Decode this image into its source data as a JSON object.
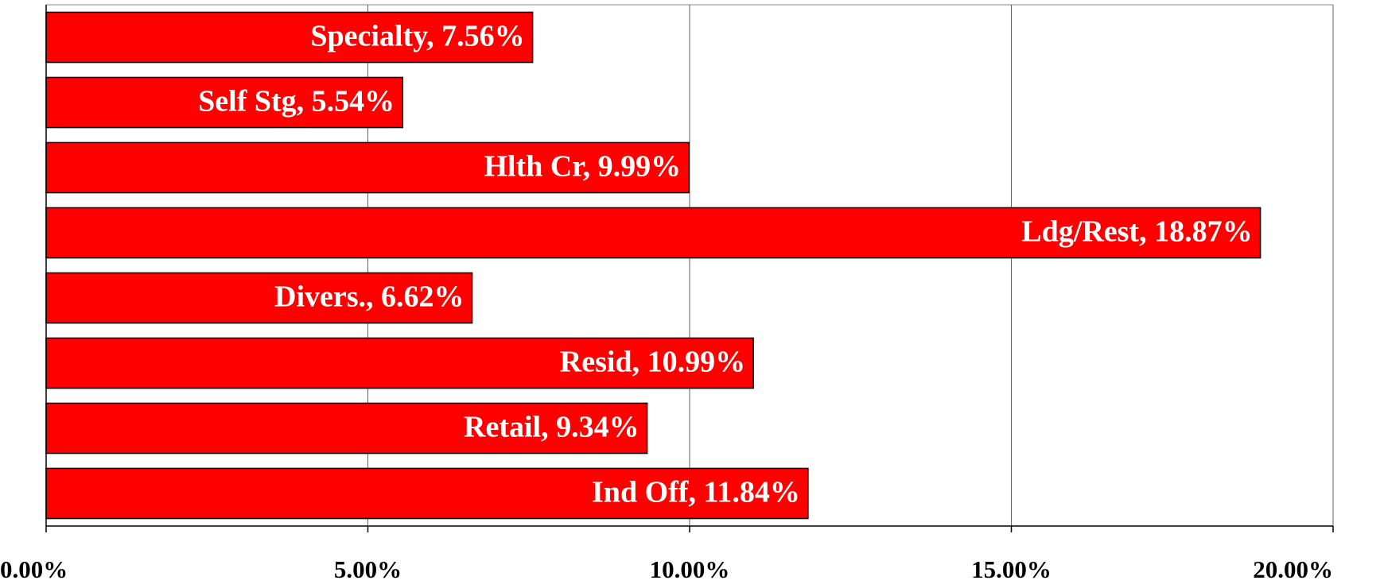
{
  "chart_data": {
    "type": "barh",
    "values": [
      7.56,
      5.54,
      9.99,
      18.87,
      6.62,
      10.99,
      9.34,
      11.84
    ],
    "value_labels": [
      "Specialty, 7.56%",
      "Self Stg, 5.54%",
      "Hlth Cr, 9.99%",
      "Ldg/Rest, 18.87%",
      "Divers., 6.62%",
      "Resid, 10.99%",
      "Retail, 9.34%",
      "Ind Off, 11.84%"
    ],
    "color": "#ff0000",
    "xlim": [
      0,
      20
    ],
    "xticks": [
      {
        "value": 0,
        "label": "0.00%"
      },
      {
        "value": 5,
        "label": "5.00%"
      },
      {
        "value": 10,
        "label": "10.00%"
      },
      {
        "value": 15,
        "label": "15.00%"
      },
      {
        "value": 20,
        "label": "20.00%"
      }
    ],
    "grid": true
  }
}
